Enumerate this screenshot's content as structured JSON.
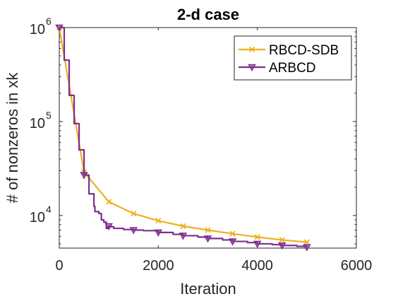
{
  "chart_data": {
    "type": "line",
    "title": "2-d case",
    "xlabel": "Iteration",
    "ylabel": "# of nonzeros in xk",
    "xlim": [
      0,
      6000
    ],
    "ylim": [
      4500,
      1000000
    ],
    "yscale": "log",
    "x_ticks": [
      {
        "value": 0,
        "label": "0"
      },
      {
        "value": 2000,
        "label": "2000"
      },
      {
        "value": 4000,
        "label": "4000"
      },
      {
        "value": 6000,
        "label": "6000"
      }
    ],
    "y_ticks": [
      {
        "value": 10000,
        "base": "10",
        "exp": "4"
      },
      {
        "value": 100000,
        "base": "10",
        "exp": "5"
      },
      {
        "value": 1000000,
        "base": "10",
        "exp": "6"
      }
    ],
    "grid": false,
    "legend": "top-right",
    "series": [
      {
        "name": "RBCD-SDB",
        "color": "#EDB120",
        "marker": "x",
        "x": [
          0,
          500,
          1000,
          1500,
          2000,
          2500,
          3000,
          3500,
          4000,
          4500,
          5000
        ],
        "y": [
          1000000,
          29000,
          14000,
          10500,
          8800,
          7700,
          7000,
          6400,
          5900,
          5500,
          5200
        ]
      },
      {
        "name": "ARBCD",
        "color": "#7E2F8E",
        "marker": "triangle-down",
        "x": [
          0,
          500,
          1000,
          1500,
          2000,
          2500,
          3000,
          3500,
          4000,
          4500,
          5000
        ],
        "y": [
          1000000,
          27000,
          7700,
          7000,
          6600,
          6100,
          5700,
          5300,
          5000,
          4800,
          4600
        ],
        "path_x": [
          0,
          100,
          200,
          300,
          400,
          500,
          600,
          700,
          720,
          800,
          850,
          900,
          950,
          1000,
          1050,
          1100,
          1300,
          1500,
          1700,
          2000,
          2300,
          2500,
          2800,
          3000,
          3300,
          3500,
          3800,
          4000,
          4300,
          4500,
          4800,
          5000
        ],
        "path_y": [
          1000000,
          450000,
          190000,
          95000,
          50000,
          27000,
          17000,
          12500,
          11000,
          10500,
          9000,
          8500,
          7300,
          7700,
          7600,
          7300,
          7100,
          7000,
          6900,
          6600,
          6300,
          6100,
          5900,
          5700,
          5500,
          5300,
          5150,
          5000,
          4900,
          4800,
          4700,
          4600
        ]
      }
    ]
  }
}
